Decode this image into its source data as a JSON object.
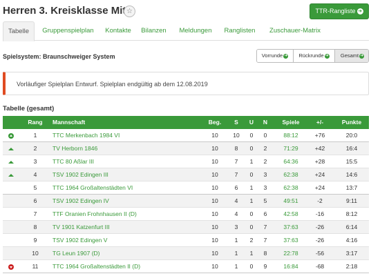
{
  "page": {
    "title": "Herren 3. Kreisklasse Mitte",
    "star": "☆"
  },
  "ttr_button": {
    "label": "TTR-Rangliste",
    "icon": "arrow-right-circle-icon"
  },
  "tabs": [
    "Tabelle",
    "Gruppenspielplan",
    "Kontakte",
    "Bilanzen",
    "Meldungen",
    "Ranglisten",
    "Zuschauer-Matrix"
  ],
  "system": {
    "label": "Spielsystem: Braunschweiger System"
  },
  "round_buttons": [
    "Vorrunde",
    "Rückrunde",
    "Gesamt"
  ],
  "alert": {
    "text": "Vorläufiger Spielplan Entwurf. Spielplan endgültig ab dem 12.08.2019",
    "color": "#e04b21"
  },
  "section": {
    "title": "Tabelle (gesamt)"
  },
  "table": {
    "headers": {
      "rang": "Rang",
      "mannschaft": "Mannschaft",
      "beg": "Beg.",
      "s": "S",
      "u": "U",
      "n": "N",
      "spiele": "Spiele",
      "diff": "+/-",
      "punkte": "Punkte"
    },
    "rows": [
      {
        "trend": "up-circle",
        "rang": "1",
        "mannschaft": "TTC Merkenbach 1984 VI",
        "beg": "10",
        "s": "10",
        "u": "0",
        "n": "0",
        "spiele": "88:12",
        "diff": "+76",
        "punkte": "20:0"
      },
      {
        "trend": "up",
        "rang": "2",
        "mannschaft": "TV Herborn 1846",
        "beg": "10",
        "s": "8",
        "u": "0",
        "n": "2",
        "spiele": "71:29",
        "diff": "+42",
        "punkte": "16:4"
      },
      {
        "trend": "up",
        "rang": "3",
        "mannschaft": "TTC 80 Aßlar III",
        "beg": "10",
        "s": "7",
        "u": "1",
        "n": "2",
        "spiele": "64:36",
        "diff": "+28",
        "punkte": "15:5"
      },
      {
        "trend": "up",
        "rang": "4",
        "mannschaft": "TSV 1902 Edingen III",
        "beg": "10",
        "s": "7",
        "u": "0",
        "n": "3",
        "spiele": "62:38",
        "diff": "+24",
        "punkte": "14:6"
      },
      {
        "trend": "",
        "rang": "5",
        "mannschaft": "TTC 1964 Großaltenstädten VI",
        "beg": "10",
        "s": "6",
        "u": "1",
        "n": "3",
        "spiele": "62:38",
        "diff": "+24",
        "punkte": "13:7"
      },
      {
        "trend": "",
        "rang": "6",
        "mannschaft": "TSV 1902 Edingen IV",
        "beg": "10",
        "s": "4",
        "u": "1",
        "n": "5",
        "spiele": "49:51",
        "diff": "-2",
        "punkte": "9:11"
      },
      {
        "trend": "",
        "rang": "7",
        "mannschaft": "TTF Oranien Frohnhausen II (D)",
        "beg": "10",
        "s": "4",
        "u": "0",
        "n": "6",
        "spiele": "42:58",
        "diff": "-16",
        "punkte": "8:12"
      },
      {
        "trend": "",
        "rang": "8",
        "mannschaft": "TV 1901 Katzenfurt III",
        "beg": "10",
        "s": "3",
        "u": "0",
        "n": "7",
        "spiele": "37:63",
        "diff": "-26",
        "punkte": "6:14"
      },
      {
        "trend": "",
        "rang": "9",
        "mannschaft": "TSV 1902 Edingen V",
        "beg": "10",
        "s": "1",
        "u": "2",
        "n": "7",
        "spiele": "37:63",
        "diff": "-26",
        "punkte": "4:16"
      },
      {
        "trend": "",
        "rang": "10",
        "mannschaft": "TG Leun 1907 (D)",
        "beg": "10",
        "s": "1",
        "u": "1",
        "n": "8",
        "spiele": "22:78",
        "diff": "-56",
        "punkte": "3:17"
      },
      {
        "trend": "down-circle",
        "rang": "11",
        "mannschaft": "TTC 1964 Großaltenstädten II (D)",
        "beg": "10",
        "s": "1",
        "u": "0",
        "n": "9",
        "spiele": "16:84",
        "diff": "-68",
        "punkte": "2:18"
      }
    ]
  },
  "colors": {
    "accent": "#3a9a3a",
    "alert": "#e04b21",
    "relegation": "#cc2222"
  }
}
